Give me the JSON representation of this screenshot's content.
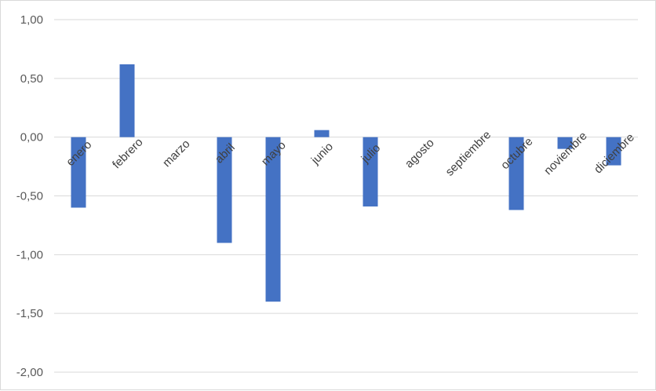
{
  "chart_data": {
    "type": "bar",
    "categories": [
      "enero",
      "febrero",
      "marzo",
      "abril",
      "mayo",
      "junio",
      "julio",
      "agosto",
      "septiembre",
      "octubre",
      "noviembre",
      "diciembre"
    ],
    "series": [
      {
        "values": [
          -0.6,
          0.62,
          0.0,
          -0.9,
          -1.4,
          0.06,
          -0.59,
          0.0,
          0.0,
          -0.62,
          -0.1,
          -0.24
        ]
      }
    ],
    "yticks": [
      "1,00",
      "0,50",
      "0,00",
      "-0,50",
      "-1,00",
      "-1,50",
      "-2,00"
    ],
    "ylim": [
      -2,
      1
    ],
    "grid": true,
    "legend": "none",
    "bar_color": "#4472c4",
    "grid_color": "#d9d9d9"
  }
}
